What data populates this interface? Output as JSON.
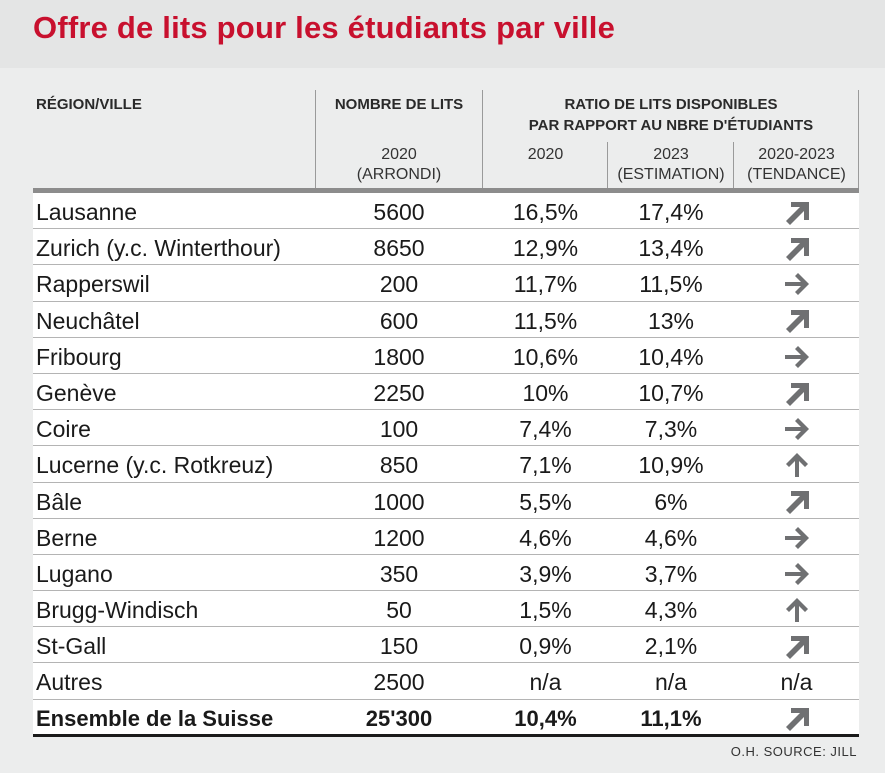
{
  "title": "Offre de lits pour les étudiants par ville",
  "header": {
    "col_city": "RÉGION/VILLE",
    "col_beds": "NOMBRE DE LITS",
    "col_ratio_line1": "RATIO DE LITS DISPONIBLES",
    "col_ratio_line2": "PAR RAPPORT AU NBRE D'ÉTUDIANTS",
    "beds_sub_1": "2020",
    "beds_sub_2": "(ARRONDI)",
    "ratio_2020": "2020",
    "ratio_2023_1": "2023",
    "ratio_2023_2": "(ESTIMATION)",
    "trend_1": "2020-2023",
    "trend_2": "(TENDANCE)"
  },
  "rows": [
    {
      "city": "Lausanne",
      "beds": "5600",
      "r2020": "16,5%",
      "r2023": "17,4%",
      "trend": "up-right"
    },
    {
      "city": "Zurich (y.c. Winterthour)",
      "beds": "8650",
      "r2020": "12,9%",
      "r2023": "13,4%",
      "trend": "up-right"
    },
    {
      "city": "Rapperswil",
      "beds": "200",
      "r2020": "11,7%",
      "r2023": "11,5%",
      "trend": "right"
    },
    {
      "city": "Neuchâtel",
      "beds": "600",
      "r2020": "11,5%",
      "r2023": "13%",
      "trend": "up-right"
    },
    {
      "city": "Fribourg",
      "beds": "1800",
      "r2020": "10,6%",
      "r2023": "10,4%",
      "trend": "right"
    },
    {
      "city": "Genève",
      "beds": "2250",
      "r2020": "10%",
      "r2023": "10,7%",
      "trend": "up-right"
    },
    {
      "city": "Coire",
      "beds": "100",
      "r2020": "7,4%",
      "r2023": "7,3%",
      "trend": "right"
    },
    {
      "city": "Lucerne (y.c. Rotkreuz)",
      "beds": "850",
      "r2020": "7,1%",
      "r2023": "10,9%",
      "trend": "up"
    },
    {
      "city": "Bâle",
      "beds": "1000",
      "r2020": "5,5%",
      "r2023": "6%",
      "trend": "up-right"
    },
    {
      "city": "Berne",
      "beds": "1200",
      "r2020": "4,6%",
      "r2023": "4,6%",
      "trend": "right"
    },
    {
      "city": "Lugano",
      "beds": "350",
      "r2020": "3,9%",
      "r2023": "3,7%",
      "trend": "right"
    },
    {
      "city": "Brugg-Windisch",
      "beds": "50",
      "r2020": "1,5%",
      "r2023": "4,3%",
      "trend": "up"
    },
    {
      "city": "St-Gall",
      "beds": "150",
      "r2020": "0,9%",
      "r2023": "2,1%",
      "trend": "up-right"
    },
    {
      "city": "Autres",
      "beds": "2500",
      "r2020": "n/a",
      "r2023": "n/a",
      "trend_text": "n/a"
    }
  ],
  "total": {
    "city": "Ensemble de la Suisse",
    "beds": "25'300",
    "r2020": "10,4%",
    "r2023": "11,1%",
    "trend": "up-right"
  },
  "source": "O.H. SOURCE: JILL",
  "colors": {
    "title": "#c8102e",
    "arrow": "#6f7072",
    "background": "#e4e5e5"
  }
}
